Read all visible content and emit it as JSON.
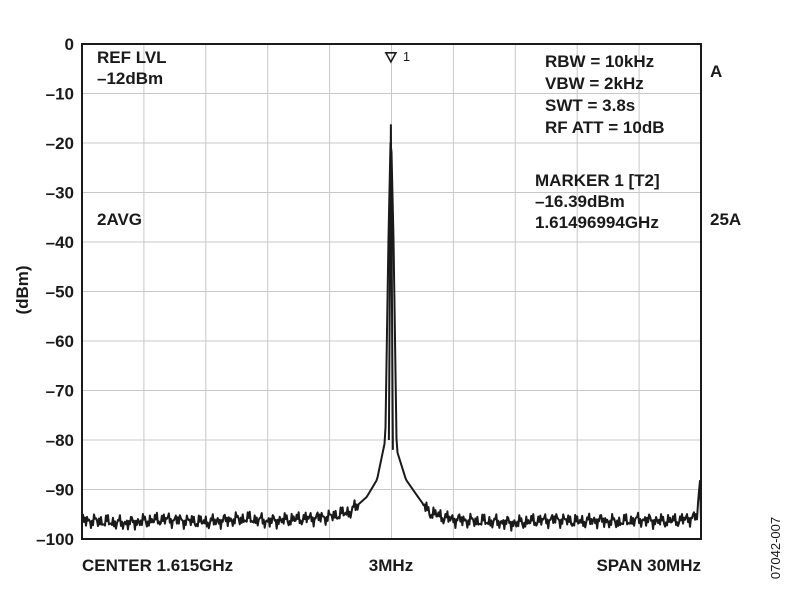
{
  "chart_data": {
    "type": "line",
    "ylabel": "(dBm)",
    "ylim": [
      -100,
      0
    ],
    "yticks": [
      0,
      -10,
      -20,
      -30,
      -40,
      -50,
      -60,
      -70,
      -80,
      -90,
      -100
    ],
    "ytick_labels": [
      "0",
      "–10",
      "–20",
      "–30",
      "–40",
      "–50",
      "–60",
      "–70",
      "–80",
      "–90",
      "–100"
    ],
    "x_center_ghz": 1.615,
    "x_span_mhz": 30,
    "xlim_ghz": [
      1.6,
      1.63
    ],
    "grid": true,
    "x_labels": {
      "left": "CENTER 1.615GHz",
      "middle": "3MHz",
      "right": "SPAN 30MHz"
    },
    "series": [
      {
        "points": [
          [
            1.6,
            -96.2
          ],
          [
            1.601,
            -96.5
          ],
          [
            1.602,
            -96.8
          ],
          [
            1.603,
            -96.4
          ],
          [
            1.604,
            -96.0
          ],
          [
            1.605,
            -96.3
          ],
          [
            1.606,
            -96.6
          ],
          [
            1.607,
            -96.2
          ],
          [
            1.608,
            -95.9
          ],
          [
            1.609,
            -96.4
          ],
          [
            1.61,
            -96.1
          ],
          [
            1.611,
            -95.8
          ],
          [
            1.612,
            -95.5
          ],
          [
            1.613,
            -94.5
          ],
          [
            1.6138,
            -91.5
          ],
          [
            1.6143,
            -88.0
          ],
          [
            1.6147,
            -80.0
          ],
          [
            1.61485,
            -40.0
          ],
          [
            1.61497,
            -16.39
          ],
          [
            1.6151,
            -40.0
          ],
          [
            1.61525,
            -82.0
          ],
          [
            1.6157,
            -88.0
          ],
          [
            1.6162,
            -91.0
          ],
          [
            1.6168,
            -94.5
          ],
          [
            1.6175,
            -95.6
          ],
          [
            1.618,
            -96.0
          ],
          [
            1.619,
            -96.4
          ],
          [
            1.62,
            -96.5
          ],
          [
            1.621,
            -96.8
          ],
          [
            1.622,
            -96.3
          ],
          [
            1.623,
            -96.0
          ],
          [
            1.624,
            -96.5
          ],
          [
            1.625,
            -96.2
          ],
          [
            1.626,
            -96.6
          ],
          [
            1.627,
            -96.1
          ],
          [
            1.628,
            -96.4
          ],
          [
            1.629,
            -96.2
          ],
          [
            1.6298,
            -95.5
          ],
          [
            1.62995,
            -88.0
          ],
          [
            1.63,
            -96.0
          ]
        ]
      }
    ],
    "marker": {
      "label": "1",
      "x_ghz": 1.61497,
      "y": -3
    },
    "annotations": {
      "ref_level": [
        "REF LVL",
        "–12dBm"
      ],
      "settings": [
        "RBW = 10kHz",
        "VBW = 2kHz",
        "SWT = 3.8s",
        "RF ATT = 10dB"
      ],
      "marker_readout": [
        "MARKER 1 [T2]",
        "–16.39dBm",
        "1.61496994GHz"
      ],
      "trace_mode": "2AVG",
      "right_label_top": "A",
      "right_label_mid": "25A",
      "figure_id": "07042-007"
    }
  }
}
